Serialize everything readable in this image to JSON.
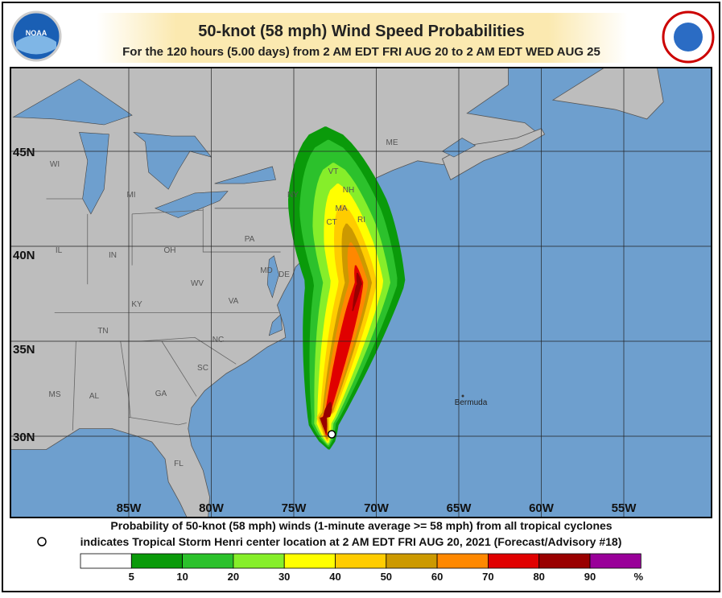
{
  "header": {
    "title": "50-knot (58 mph) Wind Speed Probabilities",
    "subtitle": "For the 120 hours (5.00 days) from 2 AM EDT FRI AUG 20 to 2 AM EDT WED AUG 25",
    "left_logo": "NOAA"
  },
  "map": {
    "lat_labels": [
      "45N",
      "40N",
      "35N",
      "30N"
    ],
    "lon_labels": [
      "85W",
      "80W",
      "75W",
      "70W",
      "65W",
      "60W",
      "55W"
    ],
    "region_labels": [
      "WI",
      "MI",
      "IL",
      "IN",
      "OH",
      "PA",
      "NY",
      "VT",
      "NH",
      "ME",
      "MA",
      "CT",
      "RI",
      "MD",
      "DE",
      "WV",
      "VA",
      "KY",
      "TN",
      "NC",
      "SC",
      "MS",
      "AL",
      "GA",
      "FL"
    ],
    "place_labels": [
      "Bermuda"
    ]
  },
  "footer": {
    "line1": "Probability of 50-knot (58 mph) winds (1-minute average >= 58 mph) from all tropical cyclones",
    "line2": "indicates Tropical Storm Henri center location at 2 AM EDT FRI AUG 20, 2021 (Forecast/Advisory #18)"
  },
  "legend": {
    "colors": [
      "#ffffff",
      "#0a9a0a",
      "#2cc12c",
      "#86ee2a",
      "#ffff00",
      "#ffcc00",
      "#cc9900",
      "#ff8800",
      "#e00000",
      "#990000",
      "#990099"
    ],
    "labels": [
      5,
      10,
      20,
      30,
      40,
      50,
      60,
      70,
      80,
      90
    ],
    "unit": "%"
  }
}
